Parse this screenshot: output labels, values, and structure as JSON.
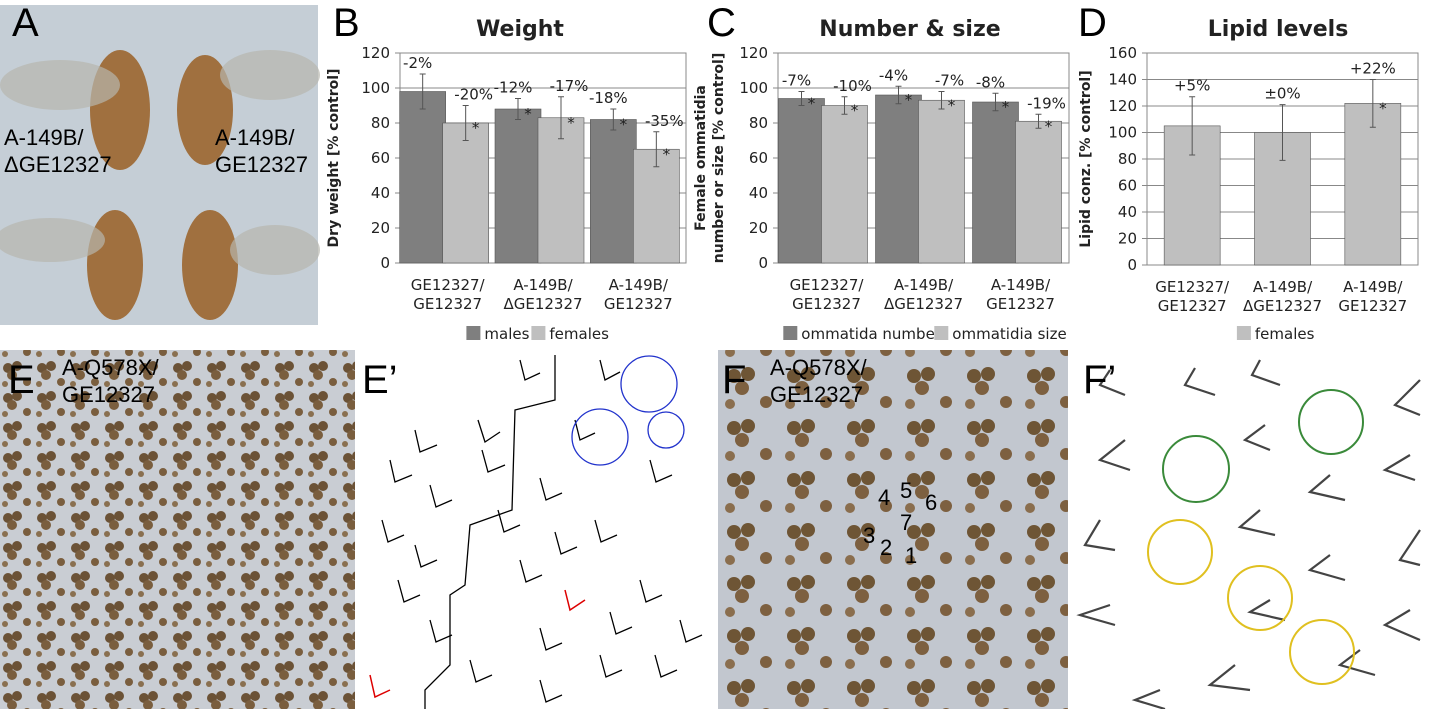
{
  "panels": [
    "A",
    "B",
    "C",
    "D",
    "E",
    "E’",
    "F",
    "F’"
  ],
  "photo_labels": {
    "a_left": "A-149B/\nΔGE12327",
    "a_right": "A-149B/\nGE12327",
    "e": "A-Q578X/\nGE12327",
    "f": "A-Q578X/\nGE12327"
  },
  "f_numbers": [
    "1",
    "2",
    "3",
    "4",
    "5",
    "6",
    "7"
  ],
  "chart_data": [
    {
      "type": "bar",
      "title": "Weight",
      "ylabel": "Dry weight [% control]",
      "categories": [
        "GE12327/\nGE12327",
        "A-149B/\nΔGE12327",
        "A-149B/\nGE12327"
      ],
      "ylim": [
        0,
        120
      ],
      "yticks": [
        0,
        20,
        40,
        60,
        80,
        100,
        120
      ],
      "grid": true,
      "legend": "bottom",
      "series": [
        {
          "name": "males",
          "color": "#7f7f7f",
          "values": [
            98,
            88,
            82
          ],
          "errors": [
            10,
            6,
            6
          ],
          "annotations": [
            "-2%",
            "-12%",
            "-18%"
          ],
          "stars": [
            null,
            "*",
            "*"
          ]
        },
        {
          "name": "females",
          "color": "#bfbfbf",
          "values": [
            80,
            83,
            65
          ],
          "errors": [
            10,
            12,
            10
          ],
          "annotations": [
            "-20%",
            "-17%",
            "-35%"
          ],
          "stars": [
            "*",
            "*",
            "*"
          ]
        }
      ]
    },
    {
      "type": "bar",
      "title": "Number & size",
      "ylabel": "Female ommatidia\nnumber or size [% control]",
      "categories": [
        "GE12327/\nGE12327",
        "A-149B/\nΔGE12327",
        "A-149B/\nGE12327"
      ],
      "ylim": [
        0,
        120
      ],
      "yticks": [
        0,
        20,
        40,
        60,
        80,
        100,
        120
      ],
      "grid": true,
      "legend": "bottom",
      "series": [
        {
          "name": "ommatida number",
          "color": "#7f7f7f",
          "values": [
            94,
            96,
            92
          ],
          "errors": [
            4,
            5,
            5
          ],
          "annotations": [
            "-7%",
            "-4%",
            "-8%"
          ],
          "stars": [
            "*",
            "*",
            "*"
          ]
        },
        {
          "name": "ommatidia size",
          "color": "#bfbfbf",
          "values": [
            90,
            93,
            81
          ],
          "errors": [
            5,
            5,
            4
          ],
          "annotations": [
            "-10%",
            "-7%",
            "-19%"
          ],
          "stars": [
            "*",
            "*",
            "*"
          ]
        }
      ]
    },
    {
      "type": "bar",
      "title": "Lipid levels",
      "ylabel": "Lipid conz. [% control]",
      "categories": [
        "GE12327/\nGE12327",
        "A-149B/\nΔGE12327",
        "A-149B/\nGE12327"
      ],
      "ylim": [
        0,
        160
      ],
      "yticks": [
        0,
        20,
        40,
        60,
        80,
        100,
        120,
        140,
        160
      ],
      "grid": true,
      "legend": "bottom",
      "series": [
        {
          "name": "females",
          "color": "#bfbfbf",
          "values": [
            105,
            100,
            122
          ],
          "errors": [
            22,
            21,
            18
          ],
          "annotations": [
            "+5%",
            "±0%",
            "+22%"
          ],
          "stars": [
            null,
            null,
            "*"
          ]
        }
      ]
    }
  ]
}
